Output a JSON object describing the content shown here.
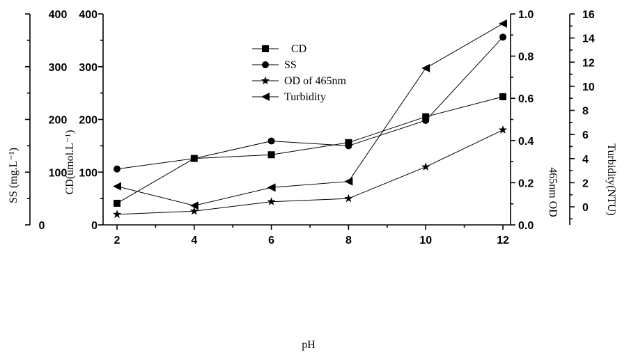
{
  "chart_data": {
    "type": "line",
    "xlabel": "pH",
    "x_ticks": [
      "2",
      "4",
      "6",
      "8",
      "10",
      "12"
    ],
    "xlim": [
      2,
      12
    ],
    "axes": {
      "ss": {
        "label": "SS (mg.L⁻¹)",
        "ylim": [
          0,
          400
        ],
        "ticks": [
          "0",
          "100",
          "200",
          "300",
          "400"
        ]
      },
      "cd": {
        "label": "CD(umol.L⁻¹)",
        "ylim": [
          0,
          400
        ],
        "ticks": [
          "0",
          "100",
          "200",
          "300",
          "400"
        ]
      },
      "od": {
        "label": "465nm OD",
        "ylim": [
          0,
          1.0
        ],
        "ticks": [
          "0.0",
          "0.2",
          "0.4",
          "0.6",
          "0.8",
          "1.0"
        ]
      },
      "turbidity": {
        "label": "Turbidity(NTU)",
        "ylim": [
          -1.5,
          16
        ],
        "ticks": [
          "0",
          "2",
          "4",
          "6",
          "8",
          "10",
          "12",
          "14",
          "16"
        ]
      }
    },
    "series": [
      {
        "name": "CD",
        "marker": "square",
        "axis": "cd",
        "x": [
          2,
          4,
          6,
          8,
          10,
          12
        ],
        "values": [
          41,
          126,
          133,
          156,
          205,
          243
        ]
      },
      {
        "name": "SS",
        "marker": "circle",
        "axis": "cd",
        "x": [
          2,
          4,
          6,
          8,
          10,
          12
        ],
        "values": [
          106,
          126,
          159,
          150,
          198,
          356
        ]
      },
      {
        "name": "OD of 465nm",
        "marker": "star",
        "axis": "od",
        "x": [
          2,
          4,
          6,
          8,
          10,
          12
        ],
        "values": [
          0.05,
          0.065,
          0.11,
          0.125,
          0.275,
          0.45
        ]
      },
      {
        "name": "Turbidity",
        "marker": "triangle-left",
        "axis": "turbidity",
        "x": [
          2,
          4,
          6,
          8,
          10,
          12
        ],
        "values": [
          1.7,
          0.1,
          1.6,
          2.1,
          11.5,
          15.2
        ]
      }
    ],
    "legend_position": "top-center"
  }
}
